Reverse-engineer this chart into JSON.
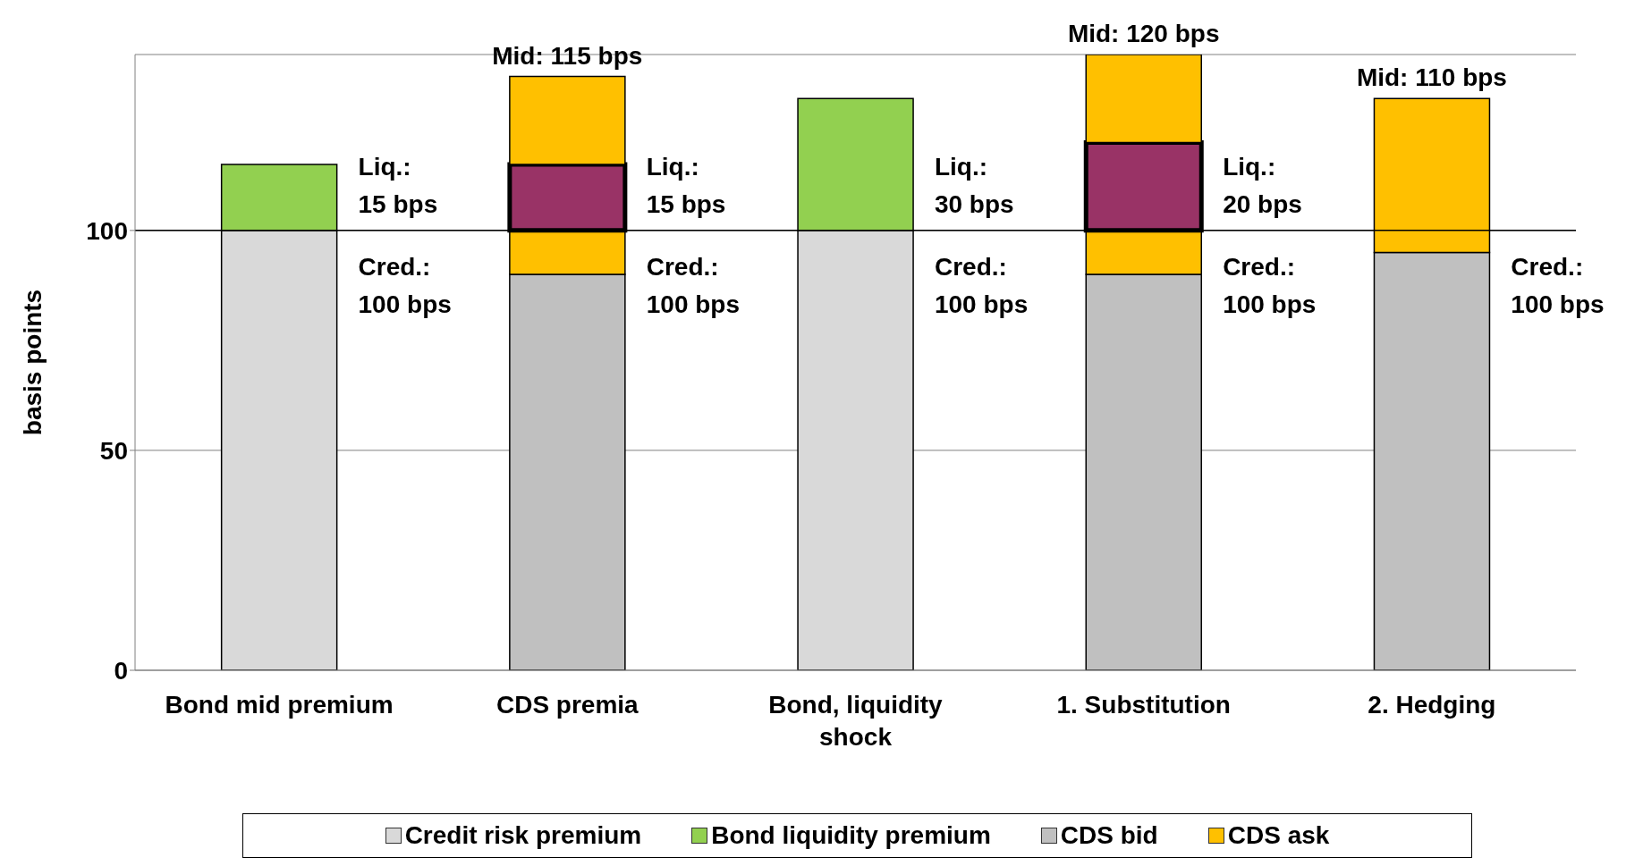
{
  "chart_data": {
    "type": "bar",
    "stacked": true,
    "ylabel": "basis points",
    "categories": [
      "Bond mid premium",
      "CDS premia",
      "Bond, liquidity shock",
      "1. Substitution",
      "2. Hedging"
    ],
    "series": [
      {
        "name": "Credit risk premium",
        "color": "#d9d9d9",
        "values": [
          100,
          null,
          100,
          null,
          null
        ]
      },
      {
        "name": "Bond liquidity premium",
        "color": "#92d050",
        "values": [
          15,
          null,
          30,
          null,
          null
        ]
      },
      {
        "name": "CDS bid",
        "color": "#c0c0c0",
        "values": [
          null,
          90,
          null,
          90,
          95
        ]
      },
      {
        "name": "CDS ask",
        "color": "#ffc000",
        "values": [
          null,
          10,
          null,
          10,
          35
        ]
      },
      {
        "color": "#993366",
        "values": [
          null,
          15,
          null,
          20,
          null
        ]
      },
      {
        "color": "#ffc000",
        "values": [
          null,
          20,
          null,
          20,
          null
        ]
      }
    ],
    "ylim": [
      0,
      140
    ],
    "yticks": [
      0,
      50,
      100
    ],
    "grid": "y",
    "legend": "bottom",
    "ref_lines": [
      {
        "axis": "y",
        "value": 100
      }
    ],
    "annotations": [
      "Liq.: 15 bps",
      "Cred.: 100 bps",
      {
        "text": "Mid: 115 bps",
        "x": "CDS premia",
        "y": 135
      },
      "Liq.: 15 bps",
      "Cred.: 100 bps",
      "Liq.: 30 bps",
      "Cred.: 100 bps",
      {
        "text": "Mid: 120 bps",
        "x": "1. Substitution",
        "y": 140
      },
      "Liq.: 20 bps",
      "Cred.: 100 bps",
      {
        "text": "Mid: 110 bps",
        "x": "2. Hedging",
        "y": 130
      },
      "Cred.: 100 bps"
    ]
  }
}
